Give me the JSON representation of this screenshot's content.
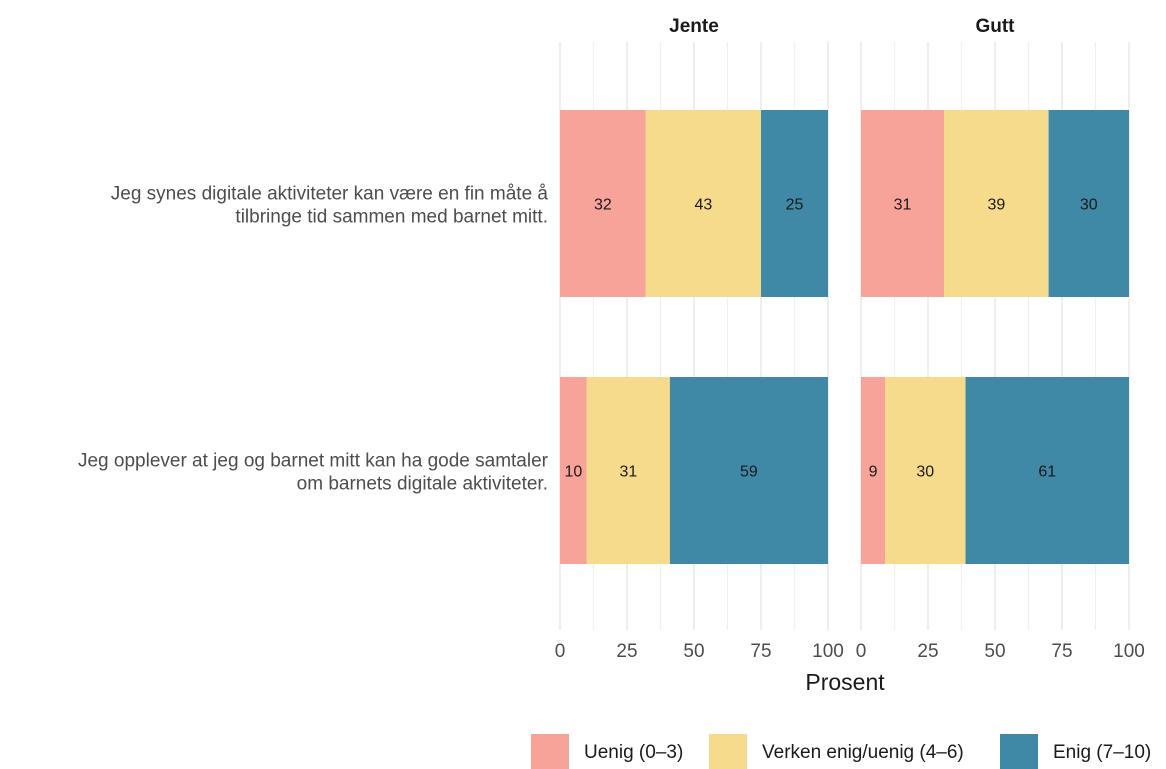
{
  "chart_data": {
    "type": "bar",
    "orientation": "horizontal",
    "stacked": true,
    "facets": [
      "Jente",
      "Gutt"
    ],
    "categories": [
      [
        "Jeg synes digitale aktiviteter kan være en fin måte å",
        "tilbringe tid sammen med barnet mitt."
      ],
      [
        "Jeg opplever at jeg og barnet mitt kan ha gode samtaler",
        "om barnets digitale aktiviteter."
      ]
    ],
    "series": [
      {
        "name": "Uenig (0–3)",
        "color": "#F8A39A",
        "values": {
          "Jente": [
            32,
            10
          ],
          "Gutt": [
            31,
            9
          ]
        }
      },
      {
        "name": "Verken enig/uenig (4–6)",
        "color": "#F7DB8C",
        "values": {
          "Jente": [
            43,
            31
          ],
          "Gutt": [
            39,
            30
          ]
        }
      },
      {
        "name": "Enig (7–10)",
        "color": "#3F89A7",
        "values": {
          "Jente": [
            25,
            59
          ],
          "Gutt": [
            30,
            61
          ]
        }
      }
    ],
    "xlabel": "Prosent",
    "xlim": [
      0,
      100
    ],
    "xticks": [
      0,
      25,
      50,
      75,
      100
    ],
    "grid": true,
    "legend": "bottom"
  }
}
